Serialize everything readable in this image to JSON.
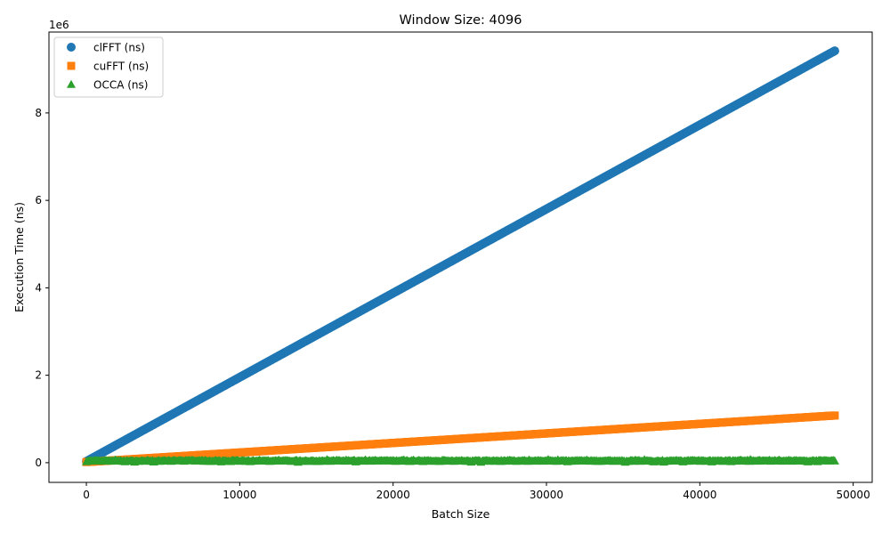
{
  "chart_data": {
    "type": "scatter",
    "title": "Window Size: 4096",
    "xlabel": "Batch Size",
    "ylabel": "Execution Time (ns)",
    "y_offset_text": "1e6",
    "xlim": [
      -2440,
      51240
    ],
    "ylim": [
      -450000,
      9850000
    ],
    "x_ticks": [
      0,
      10000,
      20000,
      30000,
      40000,
      50000
    ],
    "x_tick_labels": [
      "0",
      "10000",
      "20000",
      "30000",
      "40000",
      "50000"
    ],
    "y_ticks": [
      0,
      2000000,
      4000000,
      6000000,
      8000000
    ],
    "y_tick_labels": [
      "0",
      "2",
      "4",
      "6",
      "8"
    ],
    "grid": false,
    "legend_position": "top-left",
    "series": [
      {
        "name": "clFFT (ns)",
        "marker": "circle",
        "color": "#1f77b4",
        "x_start": 0,
        "x_end": 48800,
        "y_start": 30000,
        "y_end": 9420000,
        "noise": 0
      },
      {
        "name": "cuFFT (ns)",
        "marker": "square",
        "color": "#ff7f0e",
        "x_start": 0,
        "x_end": 48800,
        "y_start": 15000,
        "y_end": 1080000,
        "noise": 0
      },
      {
        "name": "OCCA (ns)",
        "marker": "triangle",
        "color": "#2ca02c",
        "x_start": 0,
        "x_end": 48800,
        "y_start": 40000,
        "y_end": 40000,
        "noise": 40000
      }
    ]
  }
}
